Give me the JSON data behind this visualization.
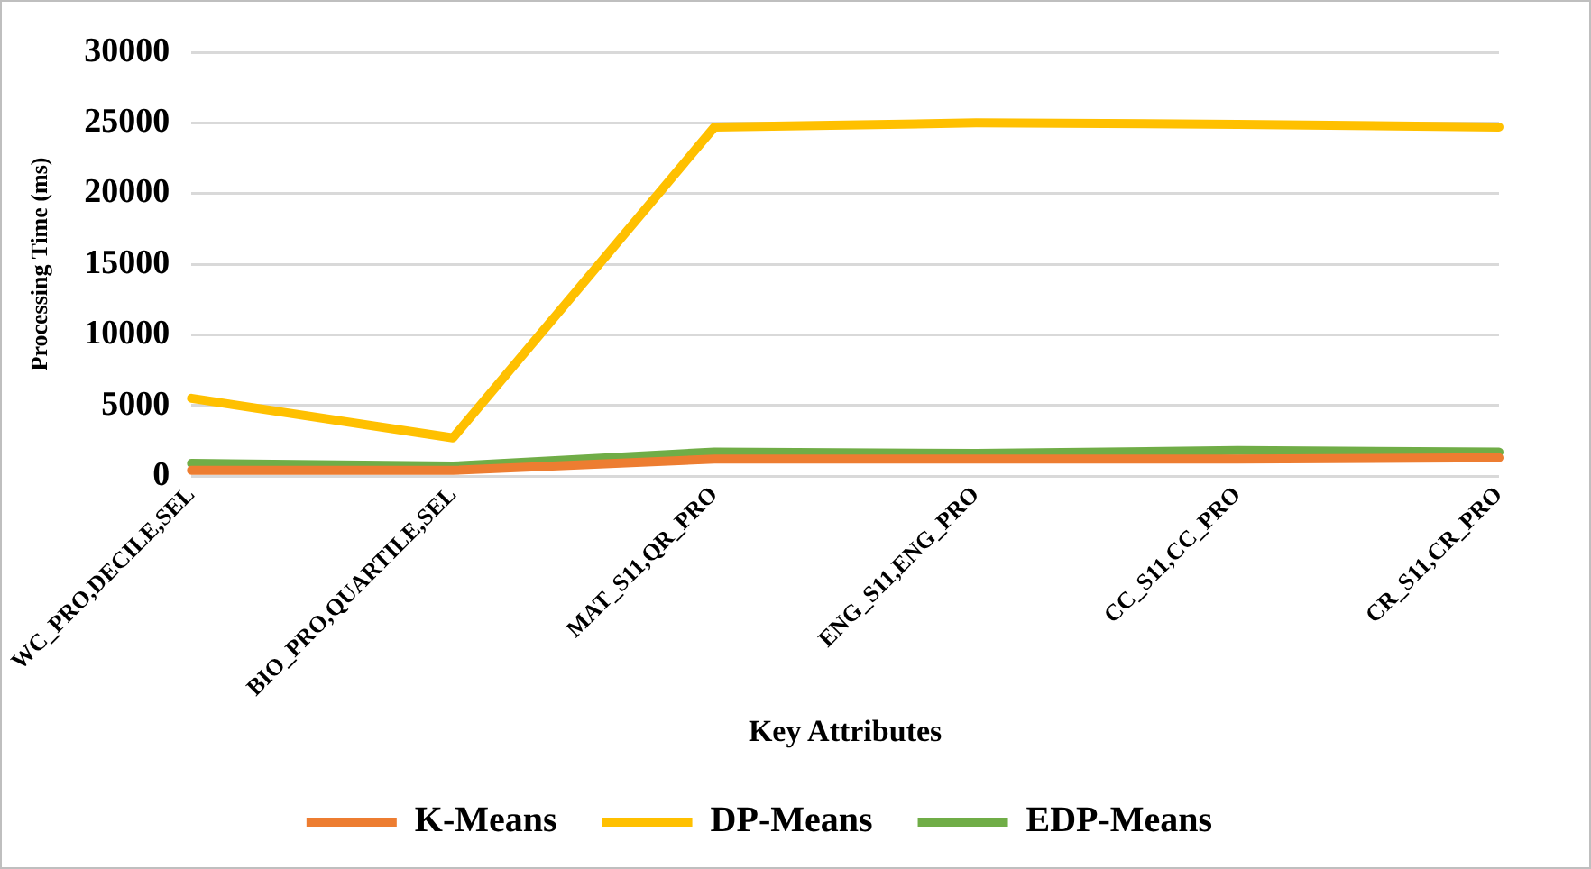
{
  "chart_data": {
    "type": "line",
    "xlabel": "Key Attributes",
    "ylabel": "Processing Time (ms)",
    "categories": [
      "WC_PRO,DECILE,SEL",
      "BIO_PRO,QUARTILE,SEL",
      "MAT_S11,QR_PRO",
      "ENG_S11,ENG_PRO",
      "CC_S11,CC_PRO",
      "CR_S11,CR_PRO"
    ],
    "series": [
      {
        "name": "K-Means",
        "color": "#ed7d31",
        "values": [
          400,
          400,
          1200,
          1200,
          1200,
          1300
        ]
      },
      {
        "name": "DP-Means",
        "color": "#ffc000",
        "values": [
          5500,
          2700,
          24700,
          25000,
          24900,
          24700
        ]
      },
      {
        "name": "EDP-Means",
        "color": "#70ad47",
        "values": [
          900,
          700,
          1700,
          1600,
          1800,
          1700
        ]
      }
    ],
    "ylim": [
      0,
      30000
    ],
    "yticks": [
      0,
      5000,
      10000,
      15000,
      20000,
      25000,
      30000
    ],
    "grid": "y",
    "legend": "bottom",
    "marker": "none",
    "line_style": "solid"
  }
}
